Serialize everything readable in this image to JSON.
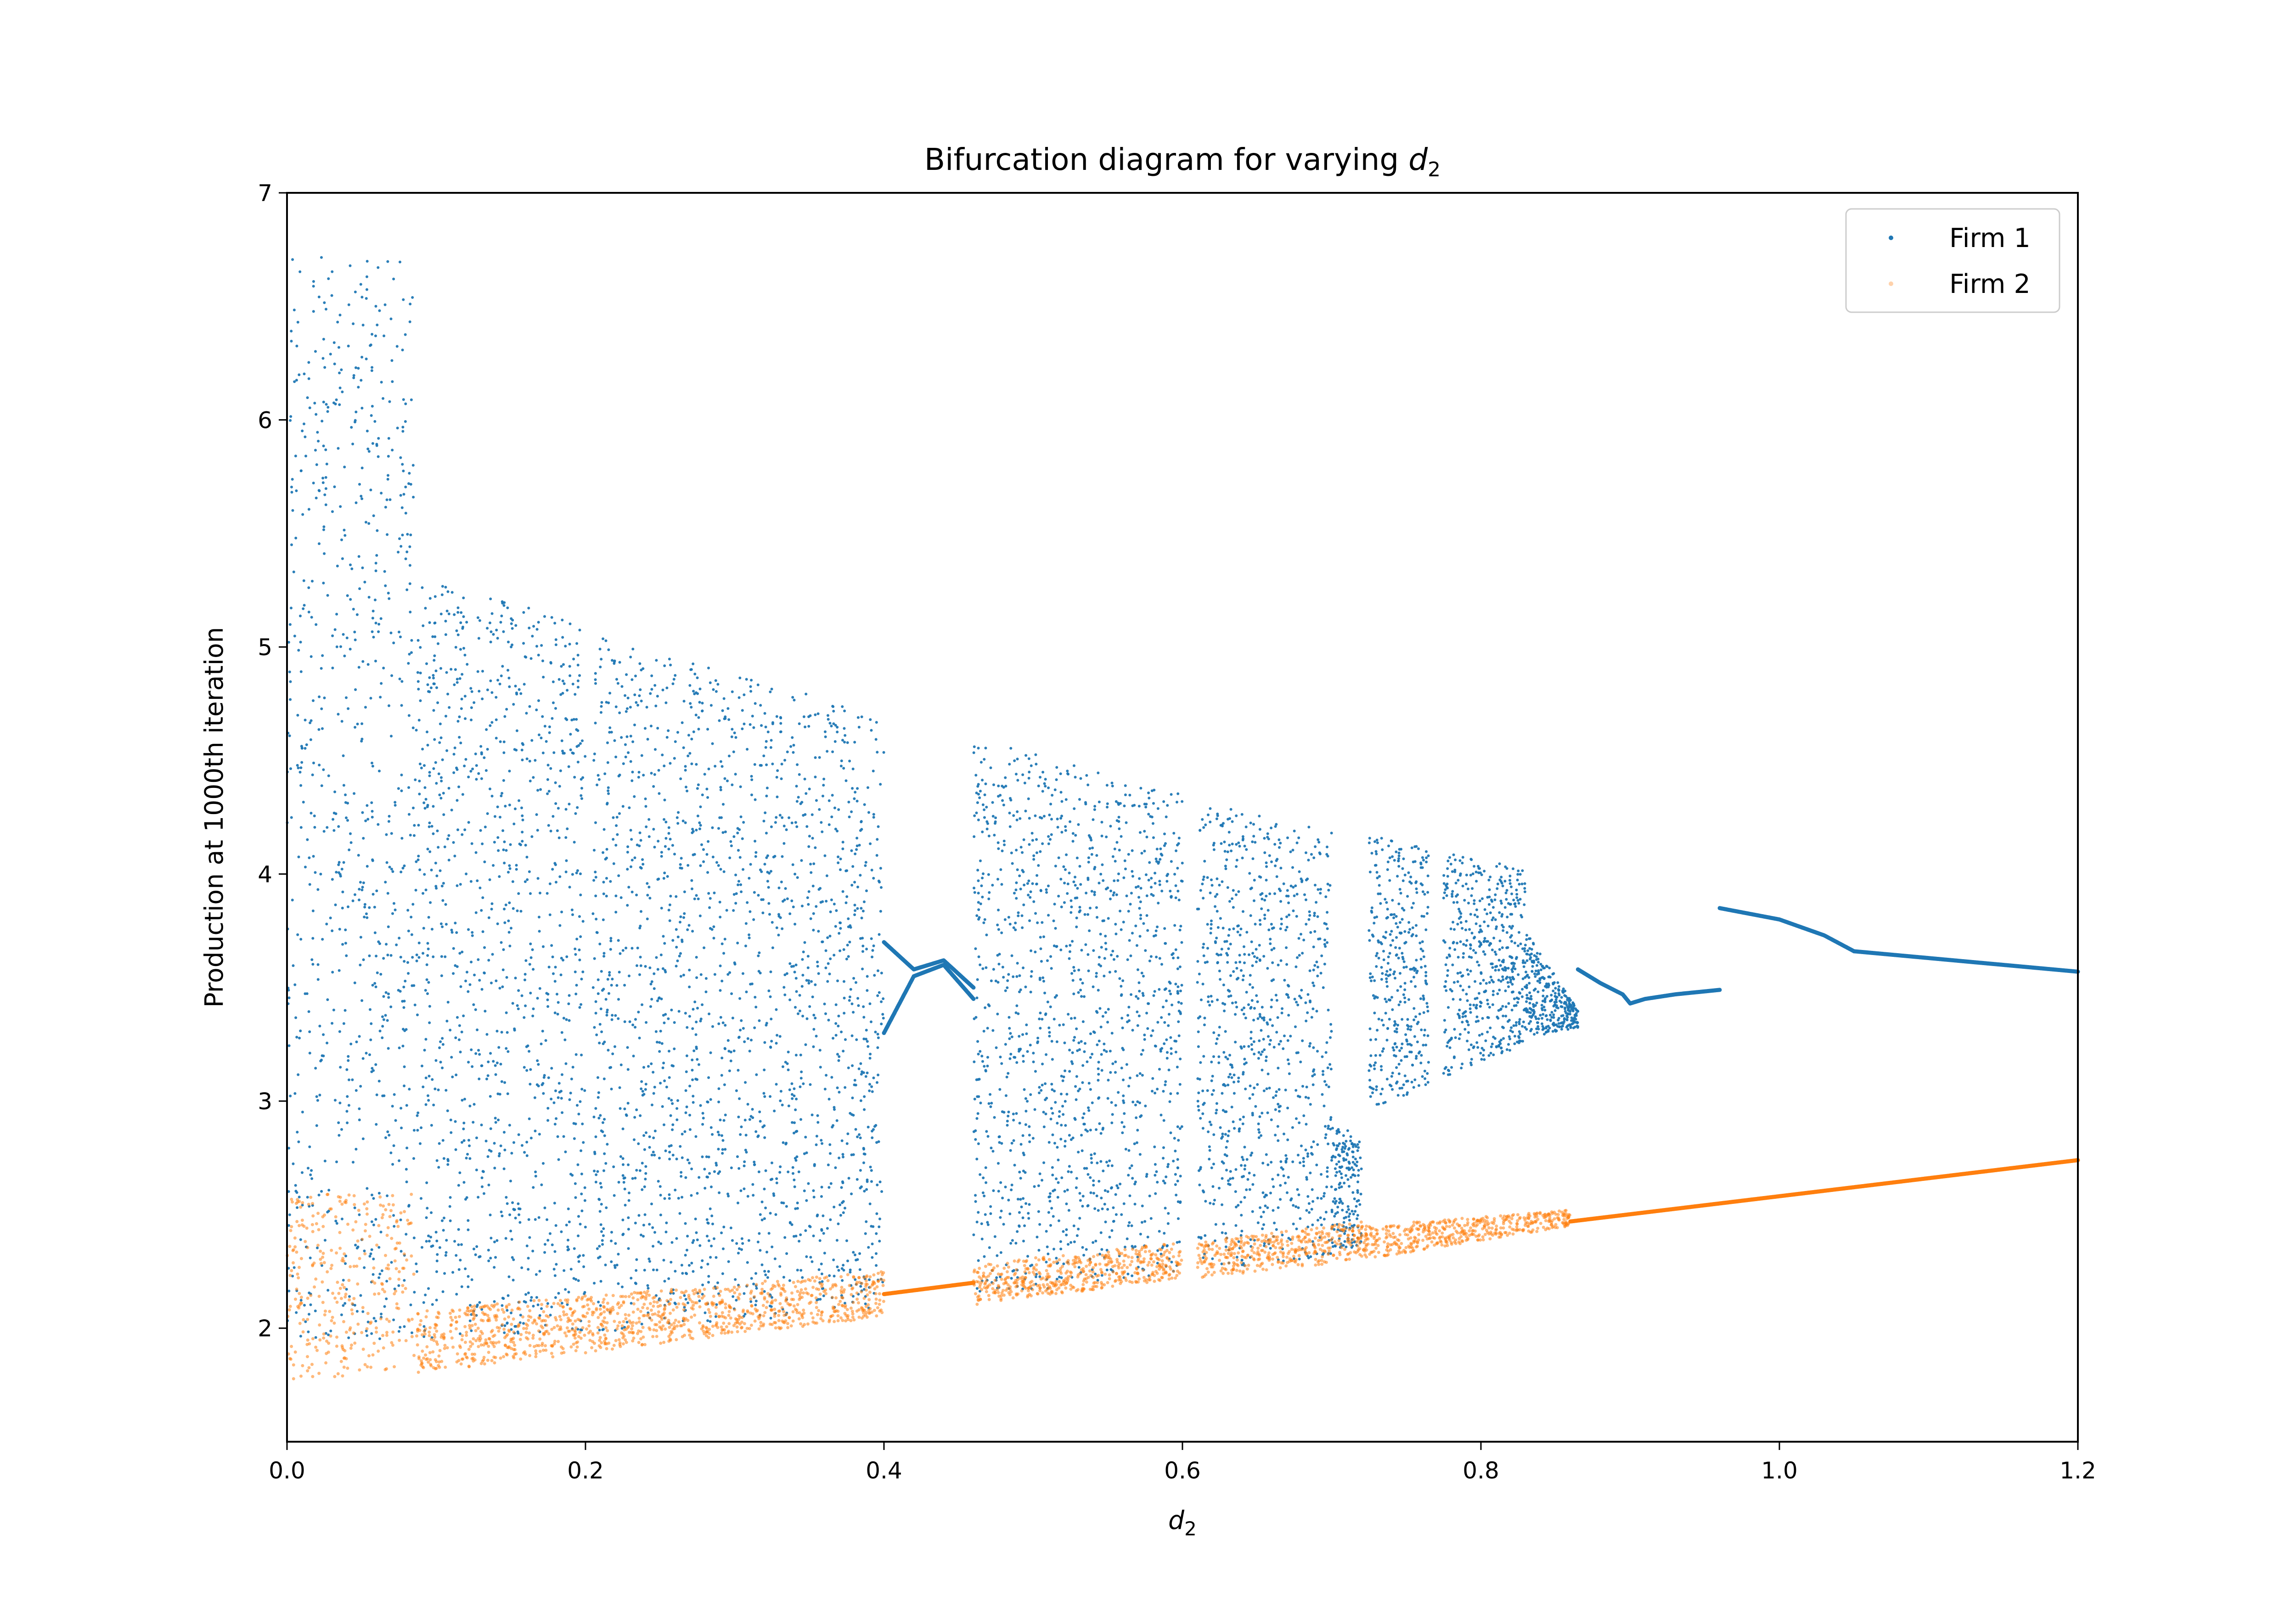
{
  "chart_data": {
    "type": "scatter",
    "title": "Bifurcation diagram for varying ",
    "title_symbol": "d",
    "title_subscript": "2",
    "xlabel_symbol": "d",
    "xlabel_subscript": "2",
    "ylabel": "Production at 1000th iteration",
    "xlim": [
      0.0,
      1.2
    ],
    "ylim": [
      1.5,
      7.0
    ],
    "xticks": [
      0.0,
      0.2,
      0.4,
      0.6,
      0.8,
      1.0,
      1.2
    ],
    "xtick_labels": [
      "0.0",
      "0.2",
      "0.4",
      "0.6",
      "0.8",
      "1.0",
      "1.2"
    ],
    "yticks": [
      2,
      3,
      4,
      5,
      6,
      7
    ],
    "ytick_labels": [
      "2",
      "3",
      "4",
      "5",
      "6",
      "7"
    ],
    "grid": false,
    "legend_position": "top-right",
    "series": [
      {
        "name": "Firm 1",
        "color": "#1f77b4",
        "chaotic_bands": [
          {
            "x": [
              0.0,
              0.085
            ],
            "y_lo": [
              1.95,
              1.95
            ],
            "y_hi": [
              6.75,
              6.7
            ]
          },
          {
            "x": [
              0.085,
              0.2
            ],
            "y_lo": [
              1.95,
              1.98
            ],
            "y_hi": [
              5.32,
              5.1
            ]
          },
          {
            "x": [
              0.205,
              0.4
            ],
            "y_lo": [
              1.98,
              2.08
            ],
            "y_hi": [
              5.05,
              4.7
            ]
          },
          {
            "x": [
              0.46,
              0.6
            ],
            "y_lo": [
              2.13,
              2.25
            ],
            "y_hi": [
              4.6,
              4.35
            ]
          },
          {
            "x": [
              0.61,
              0.7
            ],
            "y_lo": [
              2.25,
              2.32
            ],
            "y_hi": [
              4.33,
              4.2
            ]
          },
          {
            "x": [
              0.7,
              0.72
            ],
            "y_lo": [
              2.35,
              2.35
            ],
            "y_hi": [
              2.9,
              2.85
            ]
          },
          {
            "x": [
              0.725,
              0.765
            ],
            "y_lo": [
              2.97,
              3.05
            ],
            "y_hi": [
              4.17,
              4.12
            ]
          },
          {
            "x": [
              0.775,
              0.83
            ],
            "y_lo": [
              3.1,
              3.25
            ],
            "y_hi": [
              4.1,
              4.02
            ]
          },
          {
            "x": [
              0.83,
              0.865
            ],
            "y_lo": [
              3.28,
              3.32
            ],
            "y_hi": [
              3.75,
              3.4
            ]
          }
        ],
        "periodic_branches": [
          {
            "x": [
              0.4,
              0.42,
              0.44,
              0.46
            ],
            "y": [
              3.7,
              3.58,
              3.62,
              3.5
            ]
          },
          {
            "x": [
              0.4,
              0.42,
              0.44,
              0.46
            ],
            "y": [
              3.3,
              3.55,
              3.6,
              3.45
            ]
          },
          {
            "x": [
              0.865,
              0.88,
              0.895,
              0.9
            ],
            "y": [
              3.58,
              3.52,
              3.47,
              3.43
            ]
          },
          {
            "x": [
              0.9,
              0.91,
              0.93,
              0.96
            ],
            "y": [
              3.43,
              3.45,
              3.47,
              3.49
            ]
          },
          {
            "x": [
              0.96,
              1.0,
              1.03,
              1.05
            ],
            "y": [
              3.85,
              3.8,
              3.73,
              3.66
            ]
          },
          {
            "x": [
              1.05,
              1.1,
              1.15,
              1.2
            ],
            "y": [
              3.66,
              3.63,
              3.6,
              3.57
            ]
          }
        ]
      },
      {
        "name": "Firm 2",
        "color": "#ff7f0e",
        "chaotic_bands": [
          {
            "x": [
              0.0,
              0.085
            ],
            "y_lo": [
              1.76,
              1.82
            ],
            "y_hi": [
              2.58,
              2.61
            ]
          },
          {
            "x": [
              0.085,
              0.4
            ],
            "y_lo": [
              1.8,
              2.05
            ],
            "y_hi": [
              2.08,
              2.25
            ]
          },
          {
            "x": [
              0.46,
              0.6
            ],
            "y_lo": [
              2.1,
              2.22
            ],
            "y_hi": [
              2.28,
              2.38
            ]
          },
          {
            "x": [
              0.61,
              0.72
            ],
            "y_lo": [
              2.22,
              2.3
            ],
            "y_hi": [
              2.38,
              2.47
            ]
          },
          {
            "x": [
              0.72,
              0.86
            ],
            "y_lo": [
              2.3,
              2.45
            ],
            "y_hi": [
              2.45,
              2.52
            ]
          }
        ],
        "periodic_branches": [
          {
            "x": [
              0.4,
              0.46
            ],
            "y": [
              2.15,
              2.2
            ]
          },
          {
            "x": [
              0.86,
              1.2
            ],
            "y": [
              2.47,
              2.74
            ]
          }
        ]
      }
    ]
  }
}
